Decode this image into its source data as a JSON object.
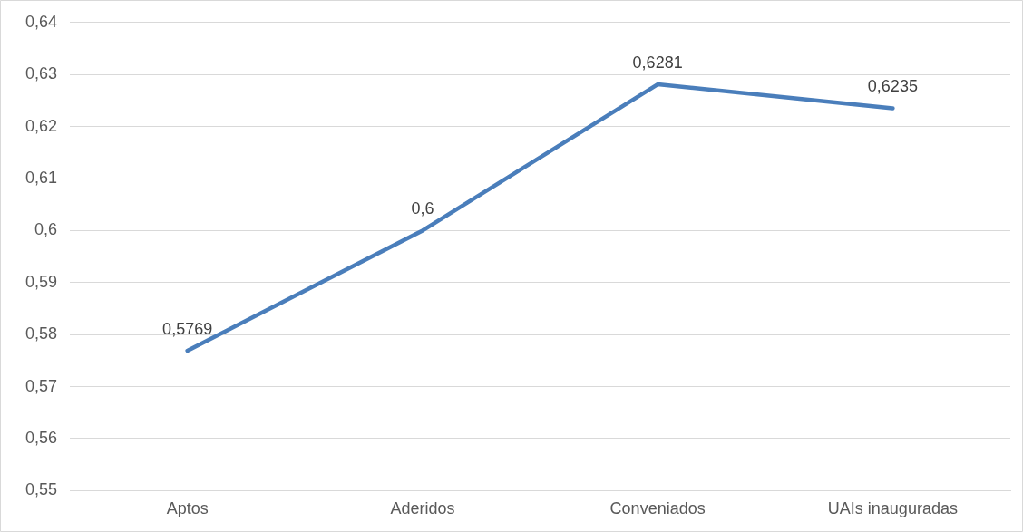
{
  "chart_data": {
    "type": "line",
    "categories": [
      "Aptos",
      "Aderidos",
      "Conveniados",
      "UAIs inauguradas"
    ],
    "series": [
      {
        "color": "#4a7ebb",
        "values": [
          0.5769,
          0.6,
          0.6281,
          0.6235
        ],
        "value_labels": [
          "0,5769",
          "0,6",
          "0,6281",
          "0,6235"
        ]
      }
    ],
    "ylim": [
      0.55,
      0.64
    ],
    "yticks": [
      {
        "value": 0.55,
        "label": "0,55"
      },
      {
        "value": 0.56,
        "label": "0,56"
      },
      {
        "value": 0.57,
        "label": "0,57"
      },
      {
        "value": 0.58,
        "label": "0,58"
      },
      {
        "value": 0.59,
        "label": "0,59"
      },
      {
        "value": 0.6,
        "label": "0,6"
      },
      {
        "value": 0.61,
        "label": "0,61"
      },
      {
        "value": 0.62,
        "label": "0,62"
      },
      {
        "value": 0.63,
        "label": "0,63"
      },
      {
        "value": 0.64,
        "label": "0,64"
      }
    ],
    "grid": "y",
    "legend": false,
    "marker": "none",
    "line_style": "solid"
  }
}
